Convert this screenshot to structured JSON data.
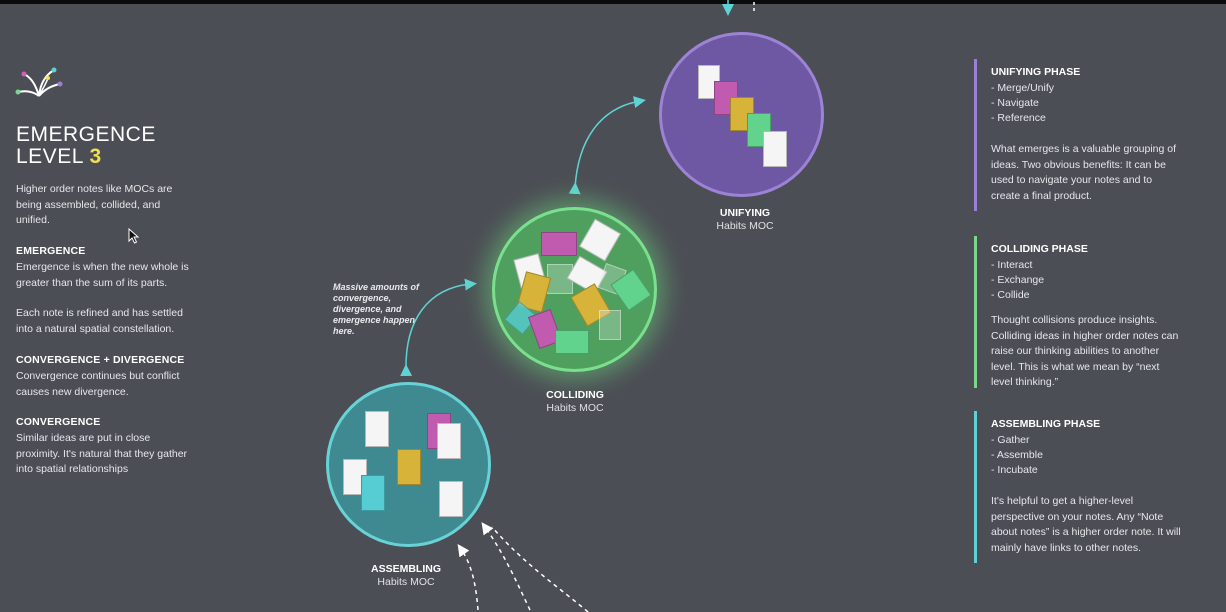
{
  "left": {
    "title_line1": "EMERGENCE",
    "title_line2": "LEVEL",
    "title_level": "3",
    "intro": "Higher order notes like MOCs are being assembled, collided, and unified.",
    "sections": [
      {
        "heading": "EMERGENCE",
        "text": "Emergence is when the new whole is greater than the sum of its parts."
      },
      {
        "heading": "",
        "text": "Each note is refined and has settled into a natural spatial constellation."
      },
      {
        "heading": "CONVERGENCE + DIVERGENCE",
        "text": "Convergence continues but conflict causes new divergence."
      },
      {
        "heading": "CONVERGENCE",
        "text": "Similar ideas are put in close proximity. It's natural that they gather into spatial relationships"
      }
    ]
  },
  "circles": {
    "unifying": {
      "title": "UNIFYING",
      "subtitle": "Habits MOC"
    },
    "colliding": {
      "title": "COLLIDING",
      "subtitle": "Habits MOC"
    },
    "assembling": {
      "title": "ASSEMBLING",
      "subtitle": "Habits MOC"
    }
  },
  "annotation": "Massive amounts of convergence, divergence, and emergence happen here.",
  "phases": {
    "unifying": {
      "heading": "UNIFYING PHASE",
      "items": [
        "- Merge/Unify",
        "- Navigate",
        "- Reference"
      ],
      "desc": "What emerges is a valuable grouping of ideas. Two obvious benefits: It can be used to navigate your notes and to create a final product.",
      "color": "#9d7fd8"
    },
    "colliding": {
      "heading": "COLLIDING PHASE",
      "items": [
        "- Interact",
        "- Exchange",
        "- Collide"
      ],
      "desc": "Thought collisions produce insights. Colliding ideas in higher order notes can raise our thinking abilities to another level. This is what we mean by “next level thinking.”",
      "color": "#7bd68a"
    },
    "assembling": {
      "heading": "ASSEMBLING PHASE",
      "items": [
        "- Gather",
        "- Assemble",
        "- Incubate"
      ],
      "desc": "It's helpful to get a higher-level perspective on your notes.  Any “Note about notes” is a higher order note. It will mainly have links to other notes.",
      "color": "#5ed0d6"
    }
  },
  "colors": {
    "background": "#4c4e55",
    "accent_yellow": "#f2de4e",
    "arrow": "#5fd2d2"
  }
}
